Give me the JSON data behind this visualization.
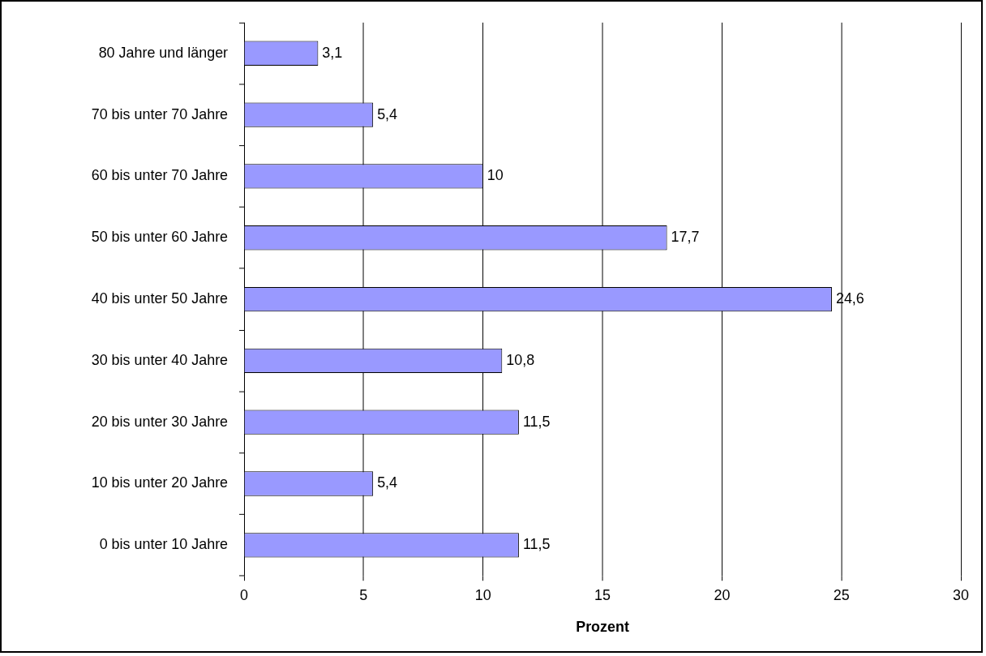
{
  "chart_data": {
    "type": "bar",
    "orientation": "horizontal",
    "xlabel": "Prozent",
    "categories": [
      "80 Jahre und länger",
      "70 bis unter 70 Jahre",
      "60 bis unter 70 Jahre",
      "50 bis unter 60 Jahre",
      "40 bis unter 50 Jahre",
      "30 bis unter 40 Jahre",
      "20 bis unter 30 Jahre",
      "10 bis unter 20 Jahre",
      "0 bis unter 10 Jahre"
    ],
    "values": [
      3.1,
      5.4,
      10,
      17.7,
      24.6,
      10.8,
      11.5,
      5.4,
      11.5
    ],
    "value_labels": [
      "3,1",
      "5,4",
      "10",
      "17,7",
      "24,6",
      "10,8",
      "11,5",
      "5,4",
      "11,5"
    ],
    "color": "#9999ff",
    "xlim": [
      0,
      30
    ],
    "xticks": [
      0,
      5,
      10,
      15,
      20,
      25,
      30
    ],
    "grid": "x",
    "legend": false
  }
}
